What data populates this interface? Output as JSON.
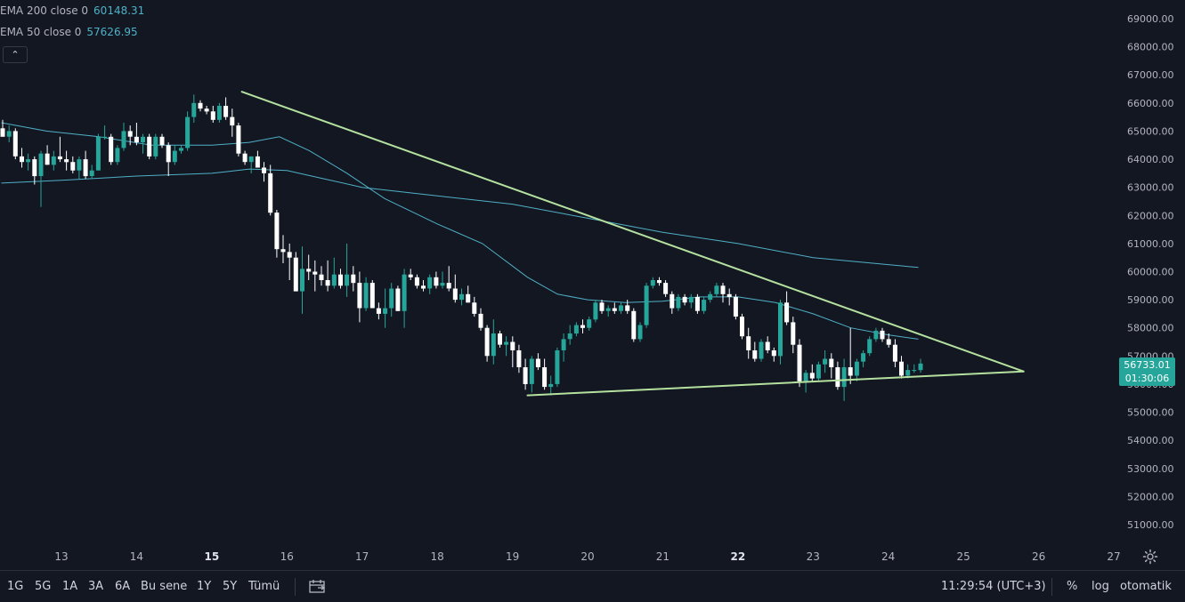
{
  "legend": {
    "ema200": {
      "label": "EMA 200 close 0",
      "value": "60148.31"
    },
    "ema50": {
      "label": "EMA 50 close 0",
      "value": "57626.95"
    },
    "collapse_icon": "chevron-up-icon"
  },
  "price_axis": {
    "ticks": [
      "69000.00",
      "68000.00",
      "67000.00",
      "66000.00",
      "65000.00",
      "64000.00",
      "63000.00",
      "62000.00",
      "61000.00",
      "60000.00",
      "59000.00",
      "58000.00",
      "57000.00",
      "56000.00",
      "55000.00",
      "54000.00",
      "53000.00",
      "52000.00",
      "51000.00"
    ]
  },
  "time_axis": {
    "ticks": [
      "13",
      "14",
      "15",
      "16",
      "17",
      "18",
      "19",
      "20",
      "21",
      "22",
      "23",
      "24",
      "25",
      "26",
      "27"
    ],
    "bold": [
      "15",
      "22"
    ]
  },
  "last_price": {
    "price": "56733.01",
    "countdown": "01:30:06",
    "color": "#26a69a"
  },
  "colors": {
    "up": "#26a69a",
    "down": "#ffffff",
    "ema": "#4fb0c6",
    "trendline": "#b5e19f",
    "background": "#131722"
  },
  "bottom_bar": {
    "ranges": [
      "1G",
      "5G",
      "1A",
      "3A",
      "6A",
      "Bu sene",
      "1Y",
      "5Y",
      "Tümü"
    ],
    "compare_icon": "date-range-icon",
    "clock": "11:29:54 (UTC+3)",
    "percent": "%",
    "log": "log",
    "auto": "otomatik",
    "settings_icon": "gear-icon"
  },
  "chart_data": {
    "type": "candlestick",
    "symbol_interval": "hourly",
    "x_unit": "day of month",
    "ylim": [
      50500,
      69500
    ],
    "xlim": [
      12.2,
      27.4
    ],
    "grid": false,
    "series": [
      {
        "name": "EMA 200 close 0",
        "type": "line",
        "last_value": 60148.31,
        "points": [
          [
            12.2,
            63150
          ],
          [
            13.0,
            63250
          ],
          [
            14.0,
            63400
          ],
          [
            15.0,
            63500
          ],
          [
            15.5,
            63650
          ],
          [
            16.0,
            63600
          ],
          [
            16.5,
            63300
          ],
          [
            17.0,
            63000
          ],
          [
            18.0,
            62700
          ],
          [
            19.0,
            62400
          ],
          [
            20.0,
            61900
          ],
          [
            21.0,
            61400
          ],
          [
            22.0,
            61000
          ],
          [
            23.0,
            60500
          ],
          [
            24.0,
            60250
          ],
          [
            24.4,
            60150
          ]
        ]
      },
      {
        "name": "EMA 50 close 0",
        "type": "line",
        "last_value": 57626.95,
        "points": [
          [
            12.2,
            65300
          ],
          [
            12.8,
            65000
          ],
          [
            13.5,
            64800
          ],
          [
            14.2,
            64500
          ],
          [
            15.0,
            64500
          ],
          [
            15.5,
            64600
          ],
          [
            15.9,
            64800
          ],
          [
            16.3,
            64300
          ],
          [
            16.8,
            63500
          ],
          [
            17.3,
            62600
          ],
          [
            18.0,
            61700
          ],
          [
            18.6,
            61000
          ],
          [
            19.2,
            59800
          ],
          [
            19.6,
            59200
          ],
          [
            20.0,
            59000
          ],
          [
            20.5,
            58900
          ],
          [
            21.0,
            58950
          ],
          [
            21.5,
            59100
          ],
          [
            22.0,
            59100
          ],
          [
            22.5,
            58900
          ],
          [
            23.0,
            58500
          ],
          [
            23.5,
            58000
          ],
          [
            24.0,
            57750
          ],
          [
            24.4,
            57600
          ]
        ]
      }
    ],
    "trendlines": [
      {
        "name": "upper",
        "points": [
          [
            15.4,
            66400
          ],
          [
            25.8,
            56450
          ]
        ]
      },
      {
        "name": "lower",
        "points": [
          [
            19.2,
            55600
          ],
          [
            25.8,
            56450
          ]
        ]
      }
    ],
    "candles": [
      {
        "o": 65100,
        "h": 65400,
        "l": 64800,
        "c": 64800
      },
      {
        "o": 64800,
        "h": 65200,
        "l": 64600,
        "c": 65000
      },
      {
        "o": 65000,
        "h": 65100,
        "l": 64000,
        "c": 64100
      },
      {
        "o": 64100,
        "h": 64400,
        "l": 63700,
        "c": 63900
      },
      {
        "o": 63900,
        "h": 64200,
        "l": 63600,
        "c": 64000
      },
      {
        "o": 64000,
        "h": 64100,
        "l": 63100,
        "c": 63400
      },
      {
        "o": 63400,
        "h": 64300,
        "l": 62300,
        "c": 64200
      },
      {
        "o": 64200,
        "h": 64500,
        "l": 63800,
        "c": 63800
      },
      {
        "o": 63800,
        "h": 64300,
        "l": 63600,
        "c": 64100
      },
      {
        "o": 64100,
        "h": 64800,
        "l": 63900,
        "c": 64000
      },
      {
        "o": 64000,
        "h": 64300,
        "l": 63600,
        "c": 63900
      },
      {
        "o": 63900,
        "h": 64100,
        "l": 63500,
        "c": 63600
      },
      {
        "o": 63600,
        "h": 64100,
        "l": 63300,
        "c": 64000
      },
      {
        "o": 64000,
        "h": 64300,
        "l": 63300,
        "c": 63400
      },
      {
        "o": 63400,
        "h": 63800,
        "l": 63300,
        "c": 63600
      },
      {
        "o": 63600,
        "h": 64900,
        "l": 63600,
        "c": 64800
      },
      {
        "o": 64800,
        "h": 65200,
        "l": 64700,
        "c": 64800
      },
      {
        "o": 64800,
        "h": 64900,
        "l": 63800,
        "c": 63900
      },
      {
        "o": 63900,
        "h": 64500,
        "l": 63800,
        "c": 64400
      },
      {
        "o": 64400,
        "h": 65300,
        "l": 64300,
        "c": 65000
      },
      {
        "o": 65000,
        "h": 65200,
        "l": 64500,
        "c": 64800
      },
      {
        "o": 64800,
        "h": 65300,
        "l": 64500,
        "c": 64600
      },
      {
        "o": 64600,
        "h": 64900,
        "l": 64200,
        "c": 64800
      },
      {
        "o": 64800,
        "h": 64900,
        "l": 64000,
        "c": 64100
      },
      {
        "o": 64100,
        "h": 64900,
        "l": 64000,
        "c": 64800
      },
      {
        "o": 64800,
        "h": 64900,
        "l": 64400,
        "c": 64500
      },
      {
        "o": 64500,
        "h": 64600,
        "l": 63400,
        "c": 63900
      },
      {
        "o": 63900,
        "h": 64500,
        "l": 63800,
        "c": 64300
      },
      {
        "o": 64300,
        "h": 64500,
        "l": 64200,
        "c": 64400
      },
      {
        "o": 64400,
        "h": 65700,
        "l": 64300,
        "c": 65500
      },
      {
        "o": 65500,
        "h": 66300,
        "l": 65300,
        "c": 66000
      },
      {
        "o": 66000,
        "h": 66100,
        "l": 65700,
        "c": 65800
      },
      {
        "o": 65800,
        "h": 65900,
        "l": 65600,
        "c": 65700
      },
      {
        "o": 65700,
        "h": 65900,
        "l": 65300,
        "c": 65400
      },
      {
        "o": 65400,
        "h": 66000,
        "l": 65300,
        "c": 65900
      },
      {
        "o": 65900,
        "h": 66200,
        "l": 65400,
        "c": 65500
      },
      {
        "o": 65500,
        "h": 65800,
        "l": 64800,
        "c": 65200
      },
      {
        "o": 65200,
        "h": 65300,
        "l": 64100,
        "c": 64200
      },
      {
        "o": 64200,
        "h": 64300,
        "l": 63800,
        "c": 63900
      },
      {
        "o": 63900,
        "h": 64100,
        "l": 63500,
        "c": 64100
      },
      {
        "o": 64100,
        "h": 64300,
        "l": 63700,
        "c": 63700
      },
      {
        "o": 63700,
        "h": 63900,
        "l": 63200,
        "c": 63500
      },
      {
        "o": 63500,
        "h": 63800,
        "l": 62000,
        "c": 62100
      },
      {
        "o": 62100,
        "h": 62200,
        "l": 60500,
        "c": 60800
      },
      {
        "o": 60800,
        "h": 61300,
        "l": 60300,
        "c": 60700
      },
      {
        "o": 60700,
        "h": 61000,
        "l": 59700,
        "c": 60500
      },
      {
        "o": 60500,
        "h": 60700,
        "l": 59300,
        "c": 59300
      },
      {
        "o": 59300,
        "h": 60900,
        "l": 58500,
        "c": 60100
      },
      {
        "o": 60100,
        "h": 60600,
        "l": 59700,
        "c": 60000
      },
      {
        "o": 60000,
        "h": 60400,
        "l": 59300,
        "c": 59900
      },
      {
        "o": 59900,
        "h": 60200,
        "l": 59500,
        "c": 59700
      },
      {
        "o": 59700,
        "h": 60400,
        "l": 59300,
        "c": 59500
      },
      {
        "o": 59500,
        "h": 60500,
        "l": 59400,
        "c": 59900
      },
      {
        "o": 59900,
        "h": 60100,
        "l": 59400,
        "c": 59500
      },
      {
        "o": 59500,
        "h": 61000,
        "l": 59100,
        "c": 59900
      },
      {
        "o": 59900,
        "h": 60200,
        "l": 59300,
        "c": 59600
      },
      {
        "o": 59600,
        "h": 60000,
        "l": 58200,
        "c": 58700
      },
      {
        "o": 58700,
        "h": 59800,
        "l": 58600,
        "c": 59600
      },
      {
        "o": 59600,
        "h": 59700,
        "l": 58700,
        "c": 58700
      },
      {
        "o": 58700,
        "h": 58900,
        "l": 58300,
        "c": 58500
      },
      {
        "o": 58500,
        "h": 59400,
        "l": 58000,
        "c": 58700
      },
      {
        "o": 58700,
        "h": 59600,
        "l": 58400,
        "c": 59400
      },
      {
        "o": 59400,
        "h": 59500,
        "l": 58600,
        "c": 58600
      },
      {
        "o": 58600,
        "h": 60100,
        "l": 58000,
        "c": 59900
      },
      {
        "o": 59900,
        "h": 60100,
        "l": 59700,
        "c": 59800
      },
      {
        "o": 59800,
        "h": 59900,
        "l": 59400,
        "c": 59500
      },
      {
        "o": 59500,
        "h": 59700,
        "l": 59300,
        "c": 59400
      },
      {
        "o": 59400,
        "h": 59900,
        "l": 59200,
        "c": 59800
      },
      {
        "o": 59800,
        "h": 60000,
        "l": 59400,
        "c": 59500
      },
      {
        "o": 59500,
        "h": 60000,
        "l": 59400,
        "c": 59600
      },
      {
        "o": 59600,
        "h": 60200,
        "l": 59300,
        "c": 59400
      },
      {
        "o": 59400,
        "h": 59900,
        "l": 58900,
        "c": 59000
      },
      {
        "o": 59000,
        "h": 59400,
        "l": 58800,
        "c": 59200
      },
      {
        "o": 59200,
        "h": 59500,
        "l": 58900,
        "c": 58900
      },
      {
        "o": 58900,
        "h": 59100,
        "l": 58400,
        "c": 58500
      },
      {
        "o": 58500,
        "h": 58700,
        "l": 57900,
        "c": 58000
      },
      {
        "o": 58000,
        "h": 58100,
        "l": 56800,
        "c": 57000
      },
      {
        "o": 57000,
        "h": 58300,
        "l": 56700,
        "c": 57800
      },
      {
        "o": 57800,
        "h": 57900,
        "l": 57300,
        "c": 57400
      },
      {
        "o": 57400,
        "h": 57700,
        "l": 57000,
        "c": 57500
      },
      {
        "o": 57500,
        "h": 57700,
        "l": 56600,
        "c": 57200
      },
      {
        "o": 57200,
        "h": 57400,
        "l": 56400,
        "c": 56600
      },
      {
        "o": 56600,
        "h": 56900,
        "l": 55800,
        "c": 56000
      },
      {
        "o": 56000,
        "h": 57000,
        "l": 55700,
        "c": 56900
      },
      {
        "o": 56900,
        "h": 57100,
        "l": 56500,
        "c": 56600
      },
      {
        "o": 56600,
        "h": 56900,
        "l": 55800,
        "c": 55900
      },
      {
        "o": 55900,
        "h": 56300,
        "l": 55600,
        "c": 56000
      },
      {
        "o": 56000,
        "h": 57300,
        "l": 55900,
        "c": 57200
      },
      {
        "o": 57200,
        "h": 57800,
        "l": 56800,
        "c": 57600
      },
      {
        "o": 57600,
        "h": 58100,
        "l": 57400,
        "c": 57800
      },
      {
        "o": 57800,
        "h": 58200,
        "l": 57700,
        "c": 58100
      },
      {
        "o": 58100,
        "h": 58300,
        "l": 57800,
        "c": 58000
      },
      {
        "o": 58000,
        "h": 58400,
        "l": 57900,
        "c": 58300
      },
      {
        "o": 58300,
        "h": 59000,
        "l": 58200,
        "c": 58900
      },
      {
        "o": 58900,
        "h": 59000,
        "l": 58500,
        "c": 58600
      },
      {
        "o": 58600,
        "h": 58800,
        "l": 58400,
        "c": 58700
      },
      {
        "o": 58700,
        "h": 58900,
        "l": 58500,
        "c": 58600
      },
      {
        "o": 58600,
        "h": 58900,
        "l": 58500,
        "c": 58800
      },
      {
        "o": 58800,
        "h": 59000,
        "l": 58500,
        "c": 58600
      },
      {
        "o": 58600,
        "h": 58700,
        "l": 57500,
        "c": 57600
      },
      {
        "o": 57600,
        "h": 58200,
        "l": 57500,
        "c": 58100
      },
      {
        "o": 58100,
        "h": 59600,
        "l": 58000,
        "c": 59500
      },
      {
        "o": 59500,
        "h": 59800,
        "l": 59400,
        "c": 59700
      },
      {
        "o": 59700,
        "h": 59800,
        "l": 59500,
        "c": 59600
      },
      {
        "o": 59600,
        "h": 59700,
        "l": 59100,
        "c": 59200
      },
      {
        "o": 59200,
        "h": 59300,
        "l": 58500,
        "c": 58700
      },
      {
        "o": 58700,
        "h": 59200,
        "l": 58600,
        "c": 59100
      },
      {
        "o": 59100,
        "h": 59200,
        "l": 58800,
        "c": 58900
      },
      {
        "o": 58900,
        "h": 59200,
        "l": 58700,
        "c": 59100
      },
      {
        "o": 59100,
        "h": 59200,
        "l": 58500,
        "c": 58600
      },
      {
        "o": 58600,
        "h": 59100,
        "l": 58500,
        "c": 59000
      },
      {
        "o": 59000,
        "h": 59300,
        "l": 58900,
        "c": 59200
      },
      {
        "o": 59200,
        "h": 59600,
        "l": 59100,
        "c": 59500
      },
      {
        "o": 59500,
        "h": 59600,
        "l": 58900,
        "c": 59200
      },
      {
        "o": 59200,
        "h": 59400,
        "l": 58800,
        "c": 59100
      },
      {
        "o": 59100,
        "h": 59200,
        "l": 58300,
        "c": 58400
      },
      {
        "o": 58400,
        "h": 58500,
        "l": 57600,
        "c": 57700
      },
      {
        "o": 57700,
        "h": 58000,
        "l": 56900,
        "c": 57200
      },
      {
        "o": 57200,
        "h": 57500,
        "l": 56800,
        "c": 56900
      },
      {
        "o": 56900,
        "h": 57600,
        "l": 56800,
        "c": 57500
      },
      {
        "o": 57500,
        "h": 57700,
        "l": 57100,
        "c": 57200
      },
      {
        "o": 57200,
        "h": 57300,
        "l": 56800,
        "c": 57000
      },
      {
        "o": 57000,
        "h": 59000,
        "l": 56700,
        "c": 58900
      },
      {
        "o": 58900,
        "h": 59300,
        "l": 58100,
        "c": 58200
      },
      {
        "o": 58200,
        "h": 58400,
        "l": 57100,
        "c": 57400
      },
      {
        "o": 57400,
        "h": 57600,
        "l": 55900,
        "c": 56100
      },
      {
        "o": 56100,
        "h": 56500,
        "l": 55700,
        "c": 56400
      },
      {
        "o": 56400,
        "h": 56700,
        "l": 56100,
        "c": 56200
      },
      {
        "o": 56200,
        "h": 56800,
        "l": 56100,
        "c": 56700
      },
      {
        "o": 56700,
        "h": 57200,
        "l": 56400,
        "c": 56900
      },
      {
        "o": 56900,
        "h": 57100,
        "l": 56200,
        "c": 56600
      },
      {
        "o": 56600,
        "h": 56800,
        "l": 55800,
        "c": 55900
      },
      {
        "o": 55900,
        "h": 56900,
        "l": 55400,
        "c": 56600
      },
      {
        "o": 56600,
        "h": 58000,
        "l": 56000,
        "c": 56300
      },
      {
        "o": 56300,
        "h": 56900,
        "l": 56100,
        "c": 56800
      },
      {
        "o": 56800,
        "h": 57200,
        "l": 56600,
        "c": 57100
      },
      {
        "o": 57100,
        "h": 57700,
        "l": 57000,
        "c": 57600
      },
      {
        "o": 57600,
        "h": 58000,
        "l": 57500,
        "c": 57900
      },
      {
        "o": 57900,
        "h": 58000,
        "l": 57500,
        "c": 57600
      },
      {
        "o": 57600,
        "h": 57800,
        "l": 57300,
        "c": 57400
      },
      {
        "o": 57400,
        "h": 57600,
        "l": 56600,
        "c": 56800
      },
      {
        "o": 56800,
        "h": 57000,
        "l": 56200,
        "c": 56300
      },
      {
        "o": 56300,
        "h": 56700,
        "l": 56200,
        "c": 56500
      },
      {
        "o": 56500,
        "h": 56700,
        "l": 56400,
        "c": 56500
      },
      {
        "o": 56500,
        "h": 56900,
        "l": 56400,
        "c": 56733.01
      }
    ]
  }
}
